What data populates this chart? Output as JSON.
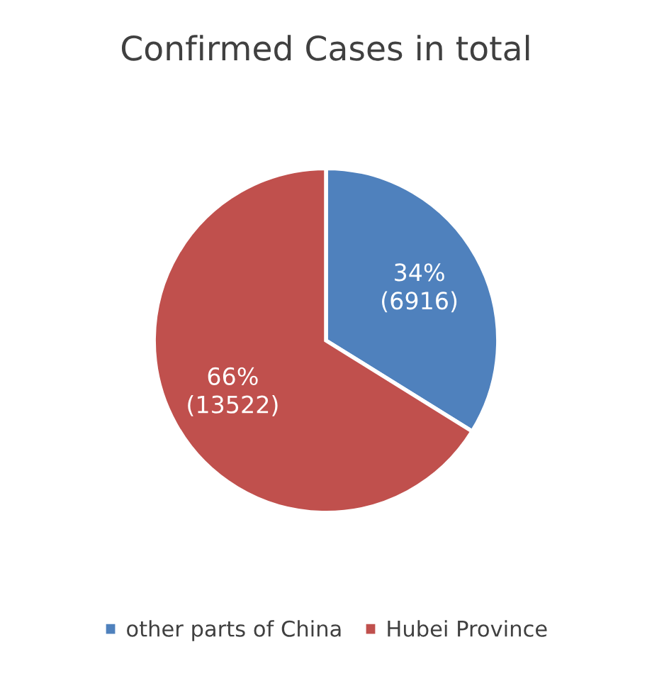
{
  "chart_data": {
    "type": "pie",
    "title": "Confirmed Cases in total",
    "categories": [
      "other parts of China",
      "Hubei Province"
    ],
    "values": [
      6916,
      13522
    ],
    "colors": [
      "#4f81bd",
      "#c0504d"
    ],
    "value_labels": [
      "34%\n(6916)",
      "66%\n(13522)"
    ],
    "legend": "bottom"
  }
}
